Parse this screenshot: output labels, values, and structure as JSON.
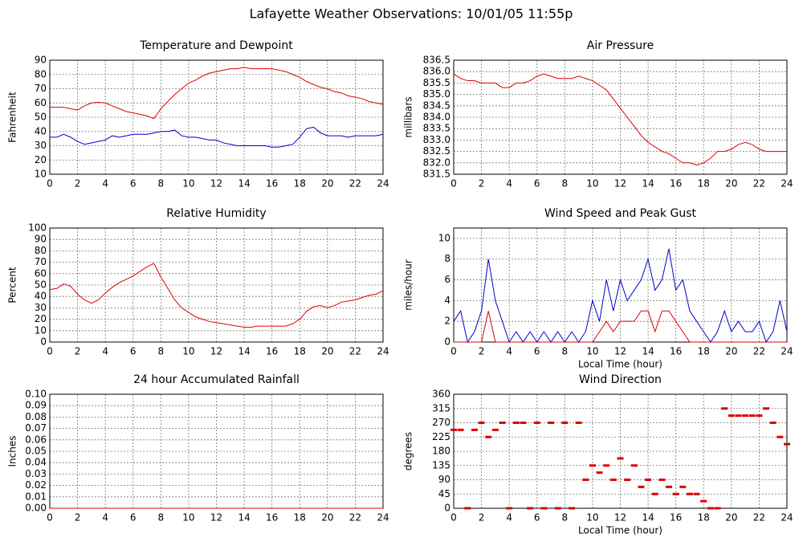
{
  "title": "Lafayette Weather Observations: 10/01/05 11:55p",
  "chart_data": [
    {
      "type": "line",
      "title": "Temperature and Dewpoint",
      "y_label": "Fahrenheit",
      "x": [
        0,
        0.5,
        1,
        1.5,
        2,
        2.5,
        3,
        3.5,
        4,
        4.5,
        5,
        5.5,
        6,
        6.5,
        7,
        7.5,
        8,
        8.5,
        9,
        9.5,
        10,
        10.5,
        11,
        11.5,
        12,
        12.5,
        13,
        13.5,
        14,
        14.5,
        15,
        15.5,
        16,
        16.5,
        17,
        17.5,
        18,
        18.5,
        19,
        19.5,
        20,
        20.5,
        21,
        21.5,
        22,
        22.5,
        23,
        23.5,
        24
      ],
      "series": [
        {
          "color": "#dd0000",
          "values": [
            57,
            57,
            57,
            56,
            55,
            58,
            60,
            60.5,
            60,
            58,
            56,
            54,
            53,
            52,
            51,
            49,
            56,
            61,
            66,
            70,
            74,
            76,
            79,
            81,
            82,
            83,
            84,
            84,
            85,
            84,
            84,
            84,
            84,
            83,
            82,
            80,
            78,
            75,
            73,
            71,
            70,
            68,
            67,
            65,
            64,
            63,
            61,
            60,
            59
          ]
        },
        {
          "color": "#0000cc",
          "values": [
            36,
            36,
            38,
            36,
            33,
            31,
            32,
            33,
            34,
            37,
            36,
            37,
            38,
            38,
            38,
            39,
            40,
            40,
            41,
            37,
            36,
            36,
            35,
            34,
            34,
            32,
            31,
            30,
            30,
            30,
            30,
            30,
            29,
            29,
            30,
            31,
            36,
            42,
            43,
            39,
            37,
            37,
            37,
            36,
            37,
            37,
            37,
            37,
            38
          ]
        }
      ],
      "xlim": [
        0,
        24
      ],
      "xticks": [
        0,
        2,
        4,
        6,
        8,
        10,
        12,
        14,
        16,
        18,
        20,
        22,
        24
      ],
      "ylim": [
        10,
        90
      ],
      "yticks": [
        10,
        20,
        30,
        40,
        50,
        60,
        70,
        80,
        90
      ],
      "grid": true
    },
    {
      "type": "line",
      "title": "Air Pressure",
      "y_label": "millibars",
      "x": [
        0,
        0.5,
        1,
        1.5,
        2,
        2.5,
        3,
        3.5,
        4,
        4.5,
        5,
        5.5,
        6,
        6.5,
        7,
        7.5,
        8,
        8.5,
        9,
        9.5,
        10,
        10.5,
        11,
        11.5,
        12,
        12.5,
        13,
        13.5,
        14,
        14.5,
        15,
        15.5,
        16,
        16.5,
        17,
        17.5,
        18,
        18.5,
        19,
        19.5,
        20,
        20.5,
        21,
        21.5,
        22,
        22.5,
        23,
        23.5,
        24
      ],
      "series": [
        {
          "color": "#dd0000",
          "values": [
            835.9,
            835.7,
            835.6,
            835.6,
            835.5,
            835.5,
            835.5,
            835.3,
            835.3,
            835.5,
            835.5,
            835.6,
            835.8,
            835.9,
            835.8,
            835.7,
            835.7,
            835.7,
            835.8,
            835.7,
            835.6,
            835.4,
            835.2,
            834.8,
            834.4,
            834.0,
            833.6,
            833.2,
            832.9,
            832.7,
            832.5,
            832.4,
            832.2,
            832.0,
            832.0,
            831.9,
            832.0,
            832.2,
            832.5,
            832.5,
            832.6,
            832.8,
            832.9,
            832.8,
            832.6,
            832.5,
            832.5,
            832.5,
            832.5
          ]
        }
      ],
      "xlim": [
        0,
        24
      ],
      "xticks": [
        0,
        2,
        4,
        6,
        8,
        10,
        12,
        14,
        16,
        18,
        20,
        22,
        24
      ],
      "ylim": [
        831.5,
        836.5
      ],
      "yticks": [
        831.5,
        {
          "value": 832,
          "label": "832.0"
        },
        832.5,
        {
          "value": 833,
          "label": "833.0"
        },
        833.5,
        {
          "value": 834,
          "label": "834.0"
        },
        834.5,
        {
          "value": 835,
          "label": "835.0"
        },
        835.5,
        {
          "value": 836,
          "label": "836.0"
        },
        836.5
      ],
      "grid": true
    },
    {
      "type": "line",
      "title": "Relative Humidity",
      "y_label": "Percent",
      "x": [
        0,
        0.5,
        1,
        1.5,
        2,
        2.5,
        3,
        3.5,
        4,
        4.5,
        5,
        5.5,
        6,
        6.5,
        7,
        7.5,
        8,
        8.5,
        9,
        9.5,
        10,
        10.5,
        11,
        11.5,
        12,
        12.5,
        13,
        13.5,
        14,
        14.5,
        15,
        15.5,
        16,
        16.5,
        17,
        17.5,
        18,
        18.5,
        19,
        19.5,
        20,
        20.5,
        21,
        21.5,
        22,
        22.5,
        23,
        23.5,
        24
      ],
      "series": [
        {
          "color": "#dd0000",
          "values": [
            46,
            47,
            51,
            49,
            42,
            37,
            34,
            37,
            43,
            48,
            52,
            55,
            58,
            62,
            66,
            69,
            57,
            47,
            37,
            30,
            26,
            22,
            20,
            18,
            17,
            16,
            15,
            14,
            13,
            13,
            14,
            14,
            14,
            14,
            14,
            16,
            20,
            27,
            31,
            32,
            30,
            32,
            35,
            36,
            37,
            39,
            41,
            42,
            45
          ]
        }
      ],
      "xlim": [
        0,
        24
      ],
      "xticks": [
        0,
        2,
        4,
        6,
        8,
        10,
        12,
        14,
        16,
        18,
        20,
        22,
        24
      ],
      "ylim": [
        0,
        100
      ],
      "yticks": [
        0,
        10,
        20,
        30,
        40,
        50,
        60,
        70,
        80,
        90,
        100
      ],
      "grid": true
    },
    {
      "type": "line",
      "title": "Wind Speed and Peak Gust",
      "y_label": "miles/hour",
      "x_label": "Local Time (hour)",
      "x": [
        0,
        0.5,
        1,
        1.5,
        2,
        2.5,
        3,
        3.5,
        4,
        4.5,
        5,
        5.5,
        6,
        6.5,
        7,
        7.5,
        8,
        8.5,
        9,
        9.5,
        10,
        10.5,
        11,
        11.5,
        12,
        12.5,
        13,
        13.5,
        14,
        14.5,
        15,
        15.5,
        16,
        16.5,
        17,
        17.5,
        18,
        18.5,
        19,
        19.5,
        20,
        20.5,
        21,
        21.5,
        22,
        22.5,
        23,
        23.5,
        24
      ],
      "series": [
        {
          "color": "#0000cc",
          "values": [
            2,
            3,
            0,
            1,
            3,
            8,
            4,
            2,
            0,
            1,
            0,
            1,
            0,
            1,
            0,
            1,
            0,
            1,
            0,
            1,
            4,
            2,
            6,
            3,
            6,
            4,
            5,
            6,
            8,
            5,
            6,
            9,
            5,
            6,
            3,
            2,
            1,
            0,
            1,
            3,
            1,
            2,
            1,
            1,
            2,
            0,
            1,
            4,
            1
          ]
        },
        {
          "color": "#dd0000",
          "values": [
            0,
            0,
            0,
            0,
            0,
            3,
            0,
            0,
            0,
            0,
            0,
            0,
            0,
            0,
            0,
            0,
            0,
            0,
            0,
            0,
            0,
            1,
            2,
            1,
            2,
            2,
            2,
            3,
            3,
            1,
            3,
            3,
            2,
            1,
            0,
            0,
            0,
            0,
            0,
            0,
            0,
            0,
            0,
            0,
            0,
            0,
            0,
            0,
            0
          ]
        }
      ],
      "xlim": [
        0,
        24
      ],
      "xticks": [
        0,
        2,
        4,
        6,
        8,
        10,
        12,
        14,
        16,
        18,
        20,
        22,
        24
      ],
      "ylim": [
        0,
        11
      ],
      "yticks": [
        0,
        2,
        4,
        6,
        8,
        10
      ],
      "grid": true
    },
    {
      "type": "line",
      "title": "24 hour Accumulated Rainfall",
      "y_label": "Inches",
      "x": [
        0,
        24
      ],
      "series": [
        {
          "color": "#dd0000",
          "values": [
            0,
            0
          ]
        }
      ],
      "xlim": [
        0,
        24
      ],
      "xticks": [
        0,
        2,
        4,
        6,
        8,
        10,
        12,
        14,
        16,
        18,
        20,
        22,
        24
      ],
      "ylim": [
        0,
        0.1
      ],
      "yticks": [
        {
          "value": 0,
          "label": "0.00"
        },
        {
          "value": 0.01,
          "label": "0.01"
        },
        {
          "value": 0.02,
          "label": "0.02"
        },
        {
          "value": 0.03,
          "label": "0.03"
        },
        {
          "value": 0.04,
          "label": "0.04"
        },
        {
          "value": 0.05,
          "label": "0.05"
        },
        {
          "value": 0.06,
          "label": "0.06"
        },
        {
          "value": 0.07,
          "label": "0.07"
        },
        {
          "value": 0.08,
          "label": "0.08"
        },
        {
          "value": 0.09,
          "label": "0.09"
        },
        {
          "value": 0.1,
          "label": "0.10"
        }
      ],
      "grid": true
    },
    {
      "type": "scatter",
      "title": "Wind Direction",
      "y_label": "degrees",
      "x_label": "Local Time (hour)",
      "x": [
        0,
        0.5,
        1,
        1.5,
        2,
        2.5,
        3,
        3.5,
        4,
        4.5,
        5,
        5.5,
        6,
        6.5,
        7,
        7.5,
        8,
        8.5,
        9,
        9.5,
        10,
        10.5,
        11,
        11.5,
        12,
        12.5,
        13,
        13.5,
        14,
        14.5,
        15,
        15.5,
        16,
        16.5,
        17,
        17.5,
        18,
        18.5,
        19,
        19.5,
        20,
        20.5,
        21,
        21.5,
        22,
        22.5,
        23,
        23.5,
        24
      ],
      "series": [
        {
          "color": "#dd0000",
          "values": [
            247.5,
            247.5,
            0,
            247.5,
            270,
            225,
            247.5,
            270,
            0,
            270,
            270,
            0,
            270,
            0,
            270,
            0,
            270,
            0,
            270,
            90,
            135,
            112.5,
            135,
            90,
            157.5,
            90,
            135,
            67.5,
            90,
            45,
            90,
            67.5,
            45,
            67.5,
            45,
            45,
            22.5,
            0,
            0,
            315,
            292.5,
            292.5,
            292.5,
            292.5,
            292.5,
            315,
            270,
            225,
            202.5
          ]
        }
      ],
      "xlim": [
        0,
        24
      ],
      "xticks": [
        0,
        2,
        4,
        6,
        8,
        10,
        12,
        14,
        16,
        18,
        20,
        22,
        24
      ],
      "ylim": [
        0,
        360
      ],
      "yticks": [
        0,
        45,
        90,
        135,
        180,
        225,
        270,
        315,
        360
      ],
      "grid": true
    }
  ]
}
